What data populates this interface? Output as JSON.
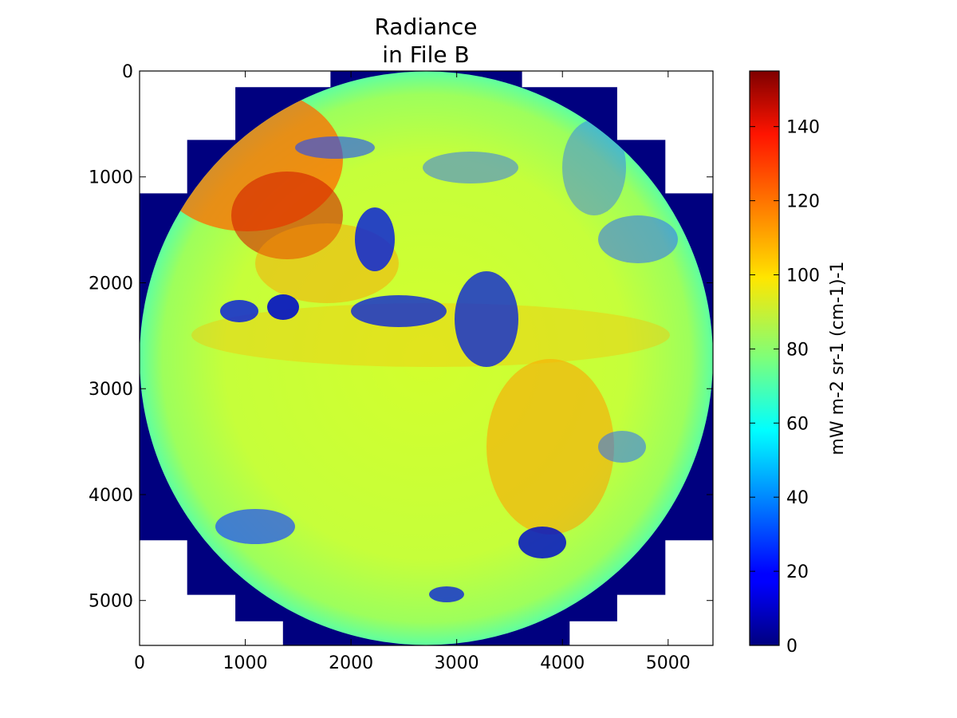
{
  "chart_data": {
    "type": "heatmap",
    "title": [
      "Radiance",
      "in File B"
    ],
    "xlabel": "",
    "ylabel": "",
    "xlim": [
      0,
      5424
    ],
    "ylim": [
      5424,
      0
    ],
    "x_ticks": [
      0,
      1000,
      2000,
      3000,
      4000,
      5000
    ],
    "y_ticks": [
      0,
      1000,
      2000,
      3000,
      4000,
      5000
    ],
    "grid": false,
    "colormap": "jet",
    "colorbar": {
      "label": "mW m-2 sr-1 (cm-1)-1",
      "range": [
        0,
        155
      ],
      "ticks": [
        0,
        20,
        40,
        60,
        80,
        100,
        120,
        140
      ]
    },
    "background_fill": {
      "value": 0,
      "description": "fill value around the disk"
    },
    "disk": {
      "center": [
        2712,
        2712
      ],
      "radius": 2712
    },
    "colors": {
      "fill": "#00007f",
      "land_warm": "#ff9a00",
      "typical": "#c8ff37"
    }
  }
}
